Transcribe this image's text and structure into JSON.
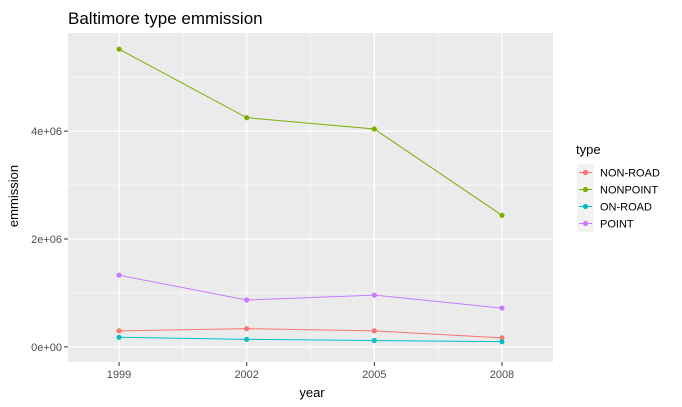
{
  "chart_data": {
    "type": "line",
    "title": "Baltimore type emmission",
    "xlabel": "year",
    "ylabel": "emmission",
    "x": [
      1999,
      2002,
      2005,
      2008
    ],
    "x_tick_labels": [
      "1999",
      "2002",
      "2005",
      "2008"
    ],
    "y_ticks": [
      0,
      2000000,
      4000000
    ],
    "y_tick_labels": [
      "0e+00",
      "2e+06",
      "4e+06"
    ],
    "ylim": [
      -280000,
      5820000
    ],
    "xlim": [
      1997.8,
      2009.2
    ],
    "grid": true,
    "legend": {
      "title": "type",
      "position": "right"
    },
    "series": [
      {
        "name": "NON-ROAD",
        "color": "#F8766D",
        "values": [
          298000,
          338000,
          298000,
          168000
        ]
      },
      {
        "name": "NONPOINT",
        "color": "#7CAE00",
        "values": [
          5520000,
          4250000,
          4040000,
          2440000
        ]
      },
      {
        "name": "ON-ROAD",
        "color": "#00BFC4",
        "values": [
          178000,
          140000,
          118000,
          97000
        ]
      },
      {
        "name": "POINT",
        "color": "#C77CFF",
        "values": [
          1330000,
          870000,
          960000,
          720000
        ]
      }
    ]
  }
}
